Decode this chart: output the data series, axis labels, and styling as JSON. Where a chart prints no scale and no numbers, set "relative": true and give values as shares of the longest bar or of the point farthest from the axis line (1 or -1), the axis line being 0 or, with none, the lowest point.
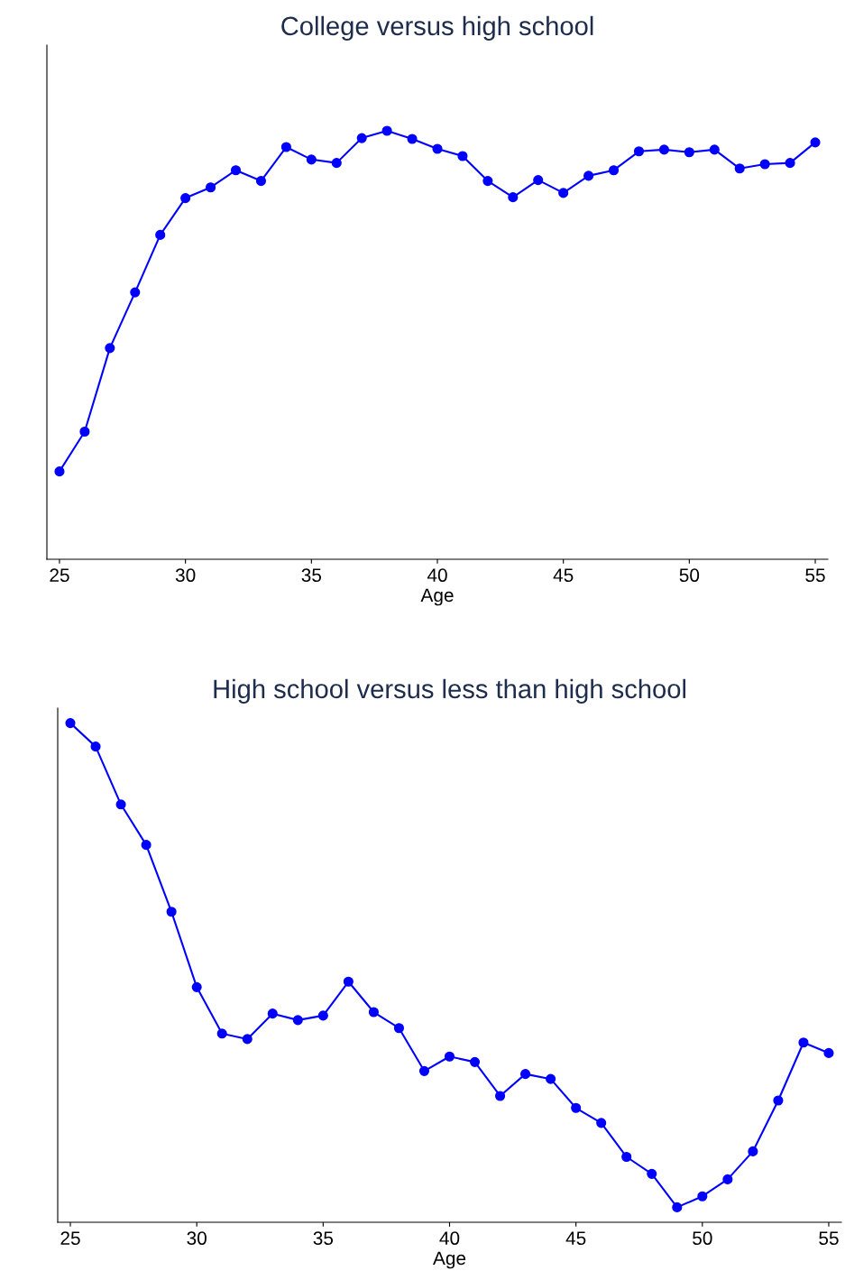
{
  "chart_data": [
    {
      "type": "line",
      "title": "College versus high school",
      "xlabel": "Age",
      "relative": true,
      "tick_labels": "x",
      "marker": "circle",
      "line_style": "solid",
      "grid": false,
      "legend": false,
      "x": [
        25,
        26,
        27,
        28,
        29,
        30,
        31,
        32,
        33,
        34,
        35,
        36,
        37,
        38,
        39,
        40,
        41,
        42,
        43,
        44,
        45,
        46,
        47,
        48,
        49,
        50,
        51,
        52,
        53,
        54,
        55
      ],
      "xlim": [
        24.5,
        55.5
      ],
      "xticks": [
        25,
        30,
        35,
        40,
        45,
        50,
        55
      ],
      "series": [
        {
          "color": "#0000ff",
          "values": [
            0.205,
            0.298,
            0.493,
            0.623,
            0.757,
            0.843,
            0.868,
            0.908,
            0.883,
            0.962,
            0.933,
            0.925,
            0.983,
            1,
            0.981,
            0.958,
            0.941,
            0.883,
            0.845,
            0.885,
            0.855,
            0.895,
            0.908,
            0.952,
            0.956,
            0.95,
            0.956,
            0.912,
            0.922,
            0.925,
            0.973
          ]
        }
      ]
    },
    {
      "type": "line",
      "title": "High school versus less than high school",
      "xlabel": "Age",
      "relative": true,
      "tick_labels": "x",
      "marker": "circle",
      "line_style": "solid",
      "grid": false,
      "legend": false,
      "x": [
        25,
        26,
        27,
        28,
        29,
        30,
        31,
        32,
        33,
        34,
        35,
        36,
        37,
        38,
        39,
        40,
        41,
        42,
        43,
        44,
        45,
        46,
        47,
        48,
        49,
        50,
        51,
        52,
        53,
        54,
        55
      ],
      "xlim": [
        24.5,
        55.5
      ],
      "xticks": [
        25,
        30,
        35,
        40,
        45,
        50,
        55
      ],
      "series": [
        {
          "color": "#0000ff",
          "values": [
            1,
            0.953,
            0.837,
            0.756,
            0.622,
            0.471,
            0.378,
            0.367,
            0.418,
            0.405,
            0.414,
            0.482,
            0.421,
            0.389,
            0.303,
            0.332,
            0.321,
            0.253,
            0.297,
            0.287,
            0.229,
            0.199,
            0.131,
            0.097,
            0.03,
            0.052,
            0.086,
            0.142,
            0.244,
            0.36,
            0.339
          ]
        }
      ]
    }
  ]
}
